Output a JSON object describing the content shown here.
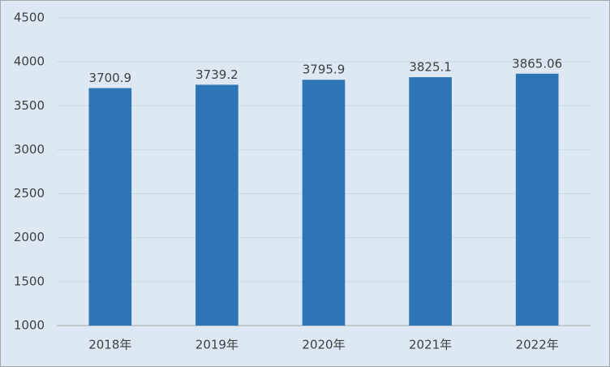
{
  "chart_data": {
    "type": "bar",
    "categories": [
      "2018年",
      "2019年",
      "2020年",
      "2021年",
      "2022年"
    ],
    "values": [
      3700.9,
      3739.2,
      3795.9,
      3825.1,
      3865.06
    ],
    "color": "#2e75b6",
    "ylim": [
      1000,
      4500
    ],
    "yticks": [
      1000,
      1500,
      2000,
      2500,
      3000,
      3500,
      4000,
      4500
    ],
    "grid": true
  }
}
